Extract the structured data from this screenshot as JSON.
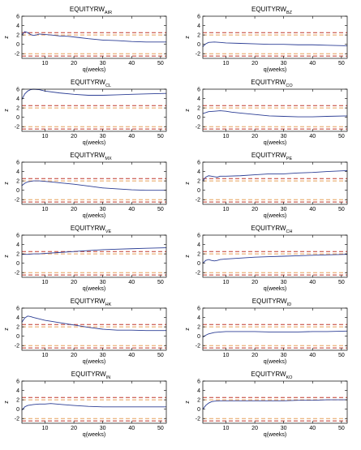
{
  "chart_data": [
    {
      "type": "line",
      "title_main": "EQUITYRW",
      "title_sub": "AIR",
      "xlabel": "q(weeks)",
      "ylabel": "z",
      "xlim": [
        2,
        52
      ],
      "ylim": [
        -3,
        6
      ],
      "xticks": [
        10,
        20,
        30,
        40,
        50
      ],
      "yticks": [
        -2,
        0,
        2,
        4,
        6
      ],
      "ref_lines": [
        {
          "y": 2.5,
          "color": "#c0392b"
        },
        {
          "y": 2.0,
          "color": "#e6a05a"
        },
        {
          "y": -2.0,
          "color": "#e6a05a"
        },
        {
          "y": -2.5,
          "color": "#c0392b"
        }
      ],
      "series": [
        {
          "color": "#2c3e95",
          "x": [
            2,
            3,
            4,
            5,
            6,
            7,
            8,
            10,
            12,
            15,
            18,
            21,
            25,
            30,
            35,
            40,
            45,
            52
          ],
          "y": [
            2.0,
            2.7,
            2.5,
            2.1,
            1.9,
            2.0,
            2.2,
            2.1,
            2.0,
            1.8,
            1.7,
            1.5,
            1.2,
            0.9,
            0.8,
            0.6,
            0.5,
            0.5
          ]
        }
      ]
    },
    {
      "type": "line",
      "title_main": "EQUITYRW",
      "title_sub": "BZ",
      "xlabel": "q(weeks)",
      "ylabel": "z",
      "xlim": [
        2,
        52
      ],
      "ylim": [
        -3,
        6
      ],
      "xticks": [
        10,
        20,
        30,
        40,
        50
      ],
      "yticks": [
        -2,
        0,
        2,
        4,
        6
      ],
      "ref_lines": [
        {
          "y": 2.5,
          "color": "#c0392b"
        },
        {
          "y": 2.0,
          "color": "#e6a05a"
        },
        {
          "y": -2.0,
          "color": "#e6a05a"
        },
        {
          "y": -2.5,
          "color": "#c0392b"
        }
      ],
      "series": [
        {
          "color": "#2c3e95",
          "x": [
            2,
            3,
            4,
            6,
            8,
            10,
            15,
            20,
            25,
            30,
            35,
            40,
            45,
            52
          ],
          "y": [
            -0.5,
            0.1,
            0.4,
            0.5,
            0.4,
            0.3,
            0.2,
            0.1,
            0.0,
            0.0,
            -0.1,
            -0.1,
            -0.2,
            -0.3
          ]
        }
      ]
    },
    {
      "type": "line",
      "title_main": "EQUITYRW",
      "title_sub": "CL",
      "xlabel": "q(weeks)",
      "ylabel": "z",
      "xlim": [
        2,
        52
      ],
      "ylim": [
        -3,
        6
      ],
      "xticks": [
        10,
        20,
        30,
        40,
        50
      ],
      "yticks": [
        -2,
        0,
        2,
        4,
        6
      ],
      "ref_lines": [
        {
          "y": 2.5,
          "color": "#c0392b"
        },
        {
          "y": 2.0,
          "color": "#e6a05a"
        },
        {
          "y": -2.0,
          "color": "#e6a05a"
        },
        {
          "y": -2.5,
          "color": "#c0392b"
        }
      ],
      "series": [
        {
          "color": "#2c3e95",
          "x": [
            2,
            3,
            4,
            5,
            6,
            8,
            10,
            15,
            20,
            25,
            30,
            35,
            40,
            45,
            52
          ],
          "y": [
            3.8,
            5.0,
            5.6,
            5.9,
            6.0,
            5.9,
            5.6,
            5.2,
            4.9,
            4.7,
            4.7,
            4.8,
            4.9,
            5.0,
            5.1
          ]
        }
      ]
    },
    {
      "type": "line",
      "title_main": "EQUITYRW",
      "title_sub": "CO",
      "xlabel": "q(weeks)",
      "ylabel": "z",
      "xlim": [
        2,
        52
      ],
      "ylim": [
        -3,
        6
      ],
      "xticks": [
        10,
        20,
        30,
        40,
        50
      ],
      "yticks": [
        -2,
        0,
        2,
        4,
        6
      ],
      "ref_lines": [
        {
          "y": 2.5,
          "color": "#c0392b"
        },
        {
          "y": 2.0,
          "color": "#e6a05a"
        },
        {
          "y": -2.0,
          "color": "#e6a05a"
        },
        {
          "y": -2.5,
          "color": "#c0392b"
        }
      ],
      "series": [
        {
          "color": "#2c3e95",
          "x": [
            2,
            4,
            6,
            8,
            10,
            12,
            15,
            20,
            25,
            30,
            35,
            40,
            45,
            52
          ],
          "y": [
            0.8,
            1.2,
            1.3,
            1.4,
            1.3,
            1.1,
            0.9,
            0.6,
            0.3,
            0.2,
            0.1,
            0.1,
            0.2,
            0.3
          ]
        }
      ]
    },
    {
      "type": "line",
      "title_main": "EQUITYRW",
      "title_sub": "MX",
      "xlabel": "q(weeks)",
      "ylabel": "z",
      "xlim": [
        2,
        52
      ],
      "ylim": [
        -3,
        6
      ],
      "xticks": [
        10,
        20,
        30,
        40,
        50
      ],
      "yticks": [
        -2,
        0,
        2,
        4,
        6
      ],
      "ref_lines": [
        {
          "y": 2.5,
          "color": "#c0392b"
        },
        {
          "y": 2.0,
          "color": "#e6a05a"
        },
        {
          "y": -2.0,
          "color": "#e6a05a"
        },
        {
          "y": -2.5,
          "color": "#c0392b"
        }
      ],
      "series": [
        {
          "color": "#2c3e95",
          "x": [
            2,
            3,
            4,
            6,
            8,
            10,
            12,
            15,
            20,
            25,
            30,
            35,
            40,
            45,
            52
          ],
          "y": [
            1.0,
            1.5,
            1.8,
            2.0,
            2.0,
            1.9,
            1.8,
            1.6,
            1.3,
            0.9,
            0.5,
            0.3,
            0.1,
            0.0,
            0.0
          ]
        }
      ]
    },
    {
      "type": "line",
      "title_main": "EQUITYRW",
      "title_sub": "PE",
      "xlabel": "q(weeks)",
      "ylabel": "z",
      "xlim": [
        2,
        52
      ],
      "ylim": [
        -3,
        6
      ],
      "xticks": [
        10,
        20,
        30,
        40,
        50
      ],
      "yticks": [
        -2,
        0,
        2,
        4,
        6
      ],
      "ref_lines": [
        {
          "y": 2.5,
          "color": "#c0392b"
        },
        {
          "y": 2.0,
          "color": "#e6a05a"
        },
        {
          "y": -2.0,
          "color": "#e6a05a"
        },
        {
          "y": -2.5,
          "color": "#c0392b"
        }
      ],
      "series": [
        {
          "color": "#2c3e95",
          "x": [
            2,
            3,
            4,
            5,
            6,
            7,
            8,
            10,
            15,
            20,
            25,
            30,
            35,
            40,
            45,
            52
          ],
          "y": [
            2.0,
            2.8,
            3.1,
            3.0,
            2.9,
            2.8,
            3.0,
            3.0,
            3.1,
            3.3,
            3.5,
            3.5,
            3.7,
            3.8,
            4.0,
            4.2
          ]
        }
      ]
    },
    {
      "type": "line",
      "title_main": "EQUITYRW",
      "title_sub": "VE",
      "xlabel": "q(weeks)",
      "ylabel": "z",
      "xlim": [
        2,
        52
      ],
      "ylim": [
        -3,
        6
      ],
      "xticks": [
        10,
        20,
        30,
        40,
        50
      ],
      "yticks": [
        -2,
        0,
        2,
        4,
        6
      ],
      "ref_lines": [
        {
          "y": 2.5,
          "color": "#c0392b"
        },
        {
          "y": 2.0,
          "color": "#e6a05a"
        },
        {
          "y": -2.0,
          "color": "#e6a05a"
        },
        {
          "y": -2.5,
          "color": "#c0392b"
        }
      ],
      "series": [
        {
          "color": "#2c3e95",
          "x": [
            2,
            4,
            6,
            8,
            10,
            15,
            20,
            25,
            30,
            35,
            40,
            45,
            52
          ],
          "y": [
            1.9,
            1.9,
            2.0,
            2.0,
            2.1,
            2.3,
            2.5,
            2.7,
            2.9,
            3.0,
            3.1,
            3.2,
            3.3
          ]
        }
      ]
    },
    {
      "type": "line",
      "title_main": "EQUITYRW",
      "title_sub": "CH",
      "xlabel": "q(weeks)",
      "ylabel": "z",
      "xlim": [
        2,
        52
      ],
      "ylim": [
        -3,
        6
      ],
      "xticks": [
        10,
        20,
        30,
        40,
        50
      ],
      "yticks": [
        -2,
        0,
        2,
        4,
        6
      ],
      "ref_lines": [
        {
          "y": 2.5,
          "color": "#c0392b"
        },
        {
          "y": 2.0,
          "color": "#e6a05a"
        },
        {
          "y": -2.0,
          "color": "#e6a05a"
        },
        {
          "y": -2.5,
          "color": "#c0392b"
        }
      ],
      "series": [
        {
          "color": "#2c3e95",
          "x": [
            2,
            3,
            4,
            5,
            6,
            7,
            8,
            10,
            15,
            20,
            25,
            30,
            35,
            40,
            45,
            52
          ],
          "y": [
            0.0,
            0.6,
            0.8,
            0.6,
            0.5,
            0.6,
            0.8,
            0.9,
            1.1,
            1.3,
            1.4,
            1.5,
            1.6,
            1.7,
            1.8,
            1.9
          ]
        }
      ]
    },
    {
      "type": "line",
      "title_main": "EQUITYRW",
      "title_sub": "HK",
      "xlabel": "q(weeks)",
      "ylabel": "z",
      "xlim": [
        2,
        52
      ],
      "ylim": [
        -3,
        6
      ],
      "xticks": [
        10,
        20,
        30,
        40,
        50
      ],
      "yticks": [
        -2,
        0,
        2,
        4,
        6
      ],
      "ref_lines": [
        {
          "y": 2.5,
          "color": "#c0392b"
        },
        {
          "y": 2.0,
          "color": "#e6a05a"
        },
        {
          "y": -2.0,
          "color": "#e6a05a"
        },
        {
          "y": -2.5,
          "color": "#c0392b"
        }
      ],
      "series": [
        {
          "color": "#2c3e95",
          "x": [
            2,
            3,
            4,
            5,
            6,
            8,
            10,
            12,
            15,
            18,
            20,
            25,
            30,
            35,
            40,
            45,
            52
          ],
          "y": [
            3.0,
            3.9,
            4.3,
            4.2,
            4.0,
            3.7,
            3.4,
            3.2,
            2.9,
            2.6,
            2.4,
            1.9,
            1.5,
            1.3,
            1.3,
            1.2,
            1.2
          ]
        }
      ]
    },
    {
      "type": "line",
      "title_main": "EQUITYRW",
      "title_sub": "ID",
      "xlabel": "q(weeks)",
      "ylabel": "z",
      "xlim": [
        2,
        52
      ],
      "ylim": [
        -3,
        6
      ],
      "xticks": [
        10,
        20,
        30,
        40,
        50
      ],
      "yticks": [
        -2,
        0,
        2,
        4,
        6
      ],
      "ref_lines": [
        {
          "y": 2.5,
          "color": "#c0392b"
        },
        {
          "y": 2.0,
          "color": "#e6a05a"
        },
        {
          "y": -2.0,
          "color": "#e6a05a"
        },
        {
          "y": -2.5,
          "color": "#c0392b"
        }
      ],
      "series": [
        {
          "color": "#2c3e95",
          "x": [
            2,
            3,
            4,
            6,
            8,
            10,
            15,
            20,
            25,
            30,
            35,
            40,
            45,
            52
          ],
          "y": [
            -0.2,
            0.2,
            0.5,
            0.8,
            0.9,
            1.0,
            1.0,
            1.0,
            0.9,
            0.9,
            0.9,
            1.0,
            1.0,
            1.1
          ]
        }
      ]
    },
    {
      "type": "line",
      "title_main": "EQUITYRW",
      "title_sub": "IN",
      "xlabel": "q(weeks)",
      "ylabel": "z",
      "xlim": [
        2,
        52
      ],
      "ylim": [
        -3,
        6
      ],
      "xticks": [
        10,
        20,
        30,
        40,
        50
      ],
      "yticks": [
        -2,
        0,
        2,
        4,
        6
      ],
      "ref_lines": [
        {
          "y": 2.5,
          "color": "#c0392b"
        },
        {
          "y": 2.0,
          "color": "#e6a05a"
        },
        {
          "y": -2.0,
          "color": "#e6a05a"
        },
        {
          "y": -2.5,
          "color": "#c0392b"
        }
      ],
      "series": [
        {
          "color": "#2c3e95",
          "x": [
            2,
            3,
            4,
            6,
            8,
            10,
            12,
            14,
            16,
            20,
            25,
            30,
            35,
            40,
            45,
            52
          ],
          "y": [
            -0.2,
            0.5,
            0.8,
            1.0,
            1.1,
            1.1,
            1.2,
            1.1,
            1.0,
            0.8,
            0.6,
            0.5,
            0.5,
            0.5,
            0.5,
            0.5
          ]
        }
      ]
    },
    {
      "type": "line",
      "title_main": "EQUITYRW",
      "title_sub": "KO",
      "xlabel": "q(weeks)",
      "ylabel": "z",
      "xlim": [
        2,
        52
      ],
      "ylim": [
        -3,
        6
      ],
      "xticks": [
        10,
        20,
        30,
        40,
        50
      ],
      "yticks": [
        -2,
        0,
        2,
        4,
        6
      ],
      "ref_lines": [
        {
          "y": 2.5,
          "color": "#c0392b"
        },
        {
          "y": 2.0,
          "color": "#e6a05a"
        },
        {
          "y": -2.0,
          "color": "#e6a05a"
        },
        {
          "y": -2.5,
          "color": "#c0392b"
        }
      ],
      "series": [
        {
          "color": "#2c3e95",
          "x": [
            2,
            3,
            4,
            5,
            6,
            8,
            10,
            15,
            20,
            25,
            30,
            35,
            40,
            45,
            52
          ],
          "y": [
            0.0,
            0.8,
            1.3,
            1.6,
            1.7,
            1.8,
            1.8,
            1.8,
            1.8,
            1.8,
            1.8,
            1.9,
            1.9,
            2.0,
            2.0
          ]
        }
      ]
    }
  ]
}
